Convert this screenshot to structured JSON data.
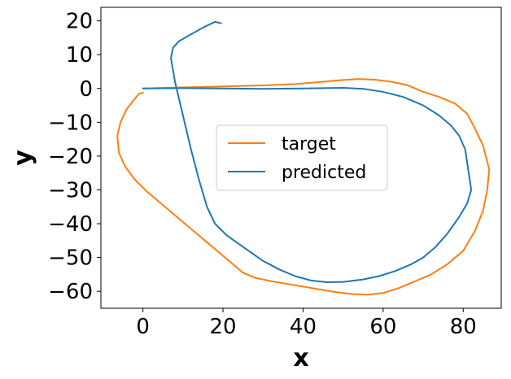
{
  "chart_data": {
    "type": "line",
    "xlabel": "x",
    "ylabel": "y",
    "xlim": [
      -10.5,
      89.5
    ],
    "ylim": [
      -65,
      24
    ],
    "x_ticks": [
      0,
      20,
      40,
      60,
      80
    ],
    "x_tick_labels": [
      "0",
      "20",
      "40",
      "60",
      "80"
    ],
    "y_ticks": [
      20,
      10,
      0,
      -10,
      -20,
      -30,
      -40,
      -50,
      -60
    ],
    "y_tick_labels": [
      "20",
      "10",
      "0",
      "−10",
      "−20",
      "−30",
      "−40",
      "−50",
      "−60"
    ],
    "grid": false,
    "legend_position": "center",
    "series": [
      {
        "name": "target",
        "color": "#ff7f0e",
        "points": [
          [
            0,
            0
          ],
          [
            10,
            0.3
          ],
          [
            20,
            0.6
          ],
          [
            30,
            0.9
          ],
          [
            38,
            1.3
          ],
          [
            45,
            2.0
          ],
          [
            50,
            2.5
          ],
          [
            54,
            2.8
          ],
          [
            58,
            2.6
          ],
          [
            62,
            2.0
          ],
          [
            66,
            1.0
          ],
          [
            70,
            -1.0
          ],
          [
            74,
            -2.5
          ],
          [
            78,
            -4.5
          ],
          [
            81,
            -7.5
          ],
          [
            83,
            -12
          ],
          [
            85,
            -17
          ],
          [
            86.5,
            -24
          ],
          [
            86,
            -30
          ],
          [
            85,
            -36
          ],
          [
            83,
            -42
          ],
          [
            80,
            -48
          ],
          [
            76,
            -52
          ],
          [
            72,
            -55
          ],
          [
            68,
            -57
          ],
          [
            64,
            -59
          ],
          [
            60,
            -60.5
          ],
          [
            56,
            -61
          ],
          [
            52,
            -60.8
          ],
          [
            48,
            -60.2
          ],
          [
            44,
            -59.4
          ],
          [
            40,
            -58.6
          ],
          [
            36,
            -57.8
          ],
          [
            32,
            -57
          ],
          [
            28,
            -56
          ],
          [
            25,
            -54.5
          ],
          [
            23,
            -52.5
          ],
          [
            21,
            -50.5
          ],
          [
            19,
            -48.5
          ],
          [
            16,
            -45.5
          ],
          [
            13,
            -42.5
          ],
          [
            10,
            -39.5
          ],
          [
            7,
            -36.5
          ],
          [
            4,
            -33.5
          ],
          [
            1,
            -30.5
          ],
          [
            -2,
            -27
          ],
          [
            -4.5,
            -23
          ],
          [
            -6,
            -19
          ],
          [
            -6.4,
            -14
          ],
          [
            -5.6,
            -10
          ],
          [
            -4,
            -6
          ],
          [
            -2,
            -3
          ],
          [
            -1,
            -1.6
          ],
          [
            0,
            -1.2
          ]
        ]
      },
      {
        "name": "predicted",
        "color": "#1f77b4",
        "points": [
          [
            0,
            0
          ],
          [
            10,
            0.1
          ],
          [
            20,
            0
          ],
          [
            30,
            -0.1
          ],
          [
            40,
            0
          ],
          [
            50,
            0.2
          ],
          [
            55,
            -0.1
          ],
          [
            60,
            -1
          ],
          [
            65,
            -2.5
          ],
          [
            70,
            -5
          ],
          [
            74,
            -8
          ],
          [
            77,
            -11
          ],
          [
            79,
            -14
          ],
          [
            80.5,
            -18
          ],
          [
            81,
            -22
          ],
          [
            81.5,
            -26
          ],
          [
            82,
            -30
          ],
          [
            81,
            -34
          ],
          [
            79,
            -38
          ],
          [
            76,
            -43
          ],
          [
            73,
            -47
          ],
          [
            70,
            -50
          ],
          [
            67,
            -52
          ],
          [
            63,
            -54
          ],
          [
            59,
            -55.5
          ],
          [
            55,
            -56.5
          ],
          [
            50,
            -57.2
          ],
          [
            46,
            -57.3
          ],
          [
            42,
            -56.8
          ],
          [
            38,
            -55.5
          ],
          [
            34,
            -53.5
          ],
          [
            30,
            -51
          ],
          [
            27,
            -48.5
          ],
          [
            24,
            -46
          ],
          [
            21,
            -43.5
          ],
          [
            18,
            -40
          ],
          [
            16,
            -35
          ],
          [
            14,
            -27
          ],
          [
            12,
            -18
          ],
          [
            10,
            -8
          ],
          [
            8,
            2
          ],
          [
            7,
            9
          ],
          [
            7.5,
            12
          ],
          [
            9,
            14
          ],
          [
            12,
            16
          ],
          [
            15,
            18
          ],
          [
            18,
            19.7
          ],
          [
            19.5,
            19.3
          ]
        ]
      }
    ]
  }
}
